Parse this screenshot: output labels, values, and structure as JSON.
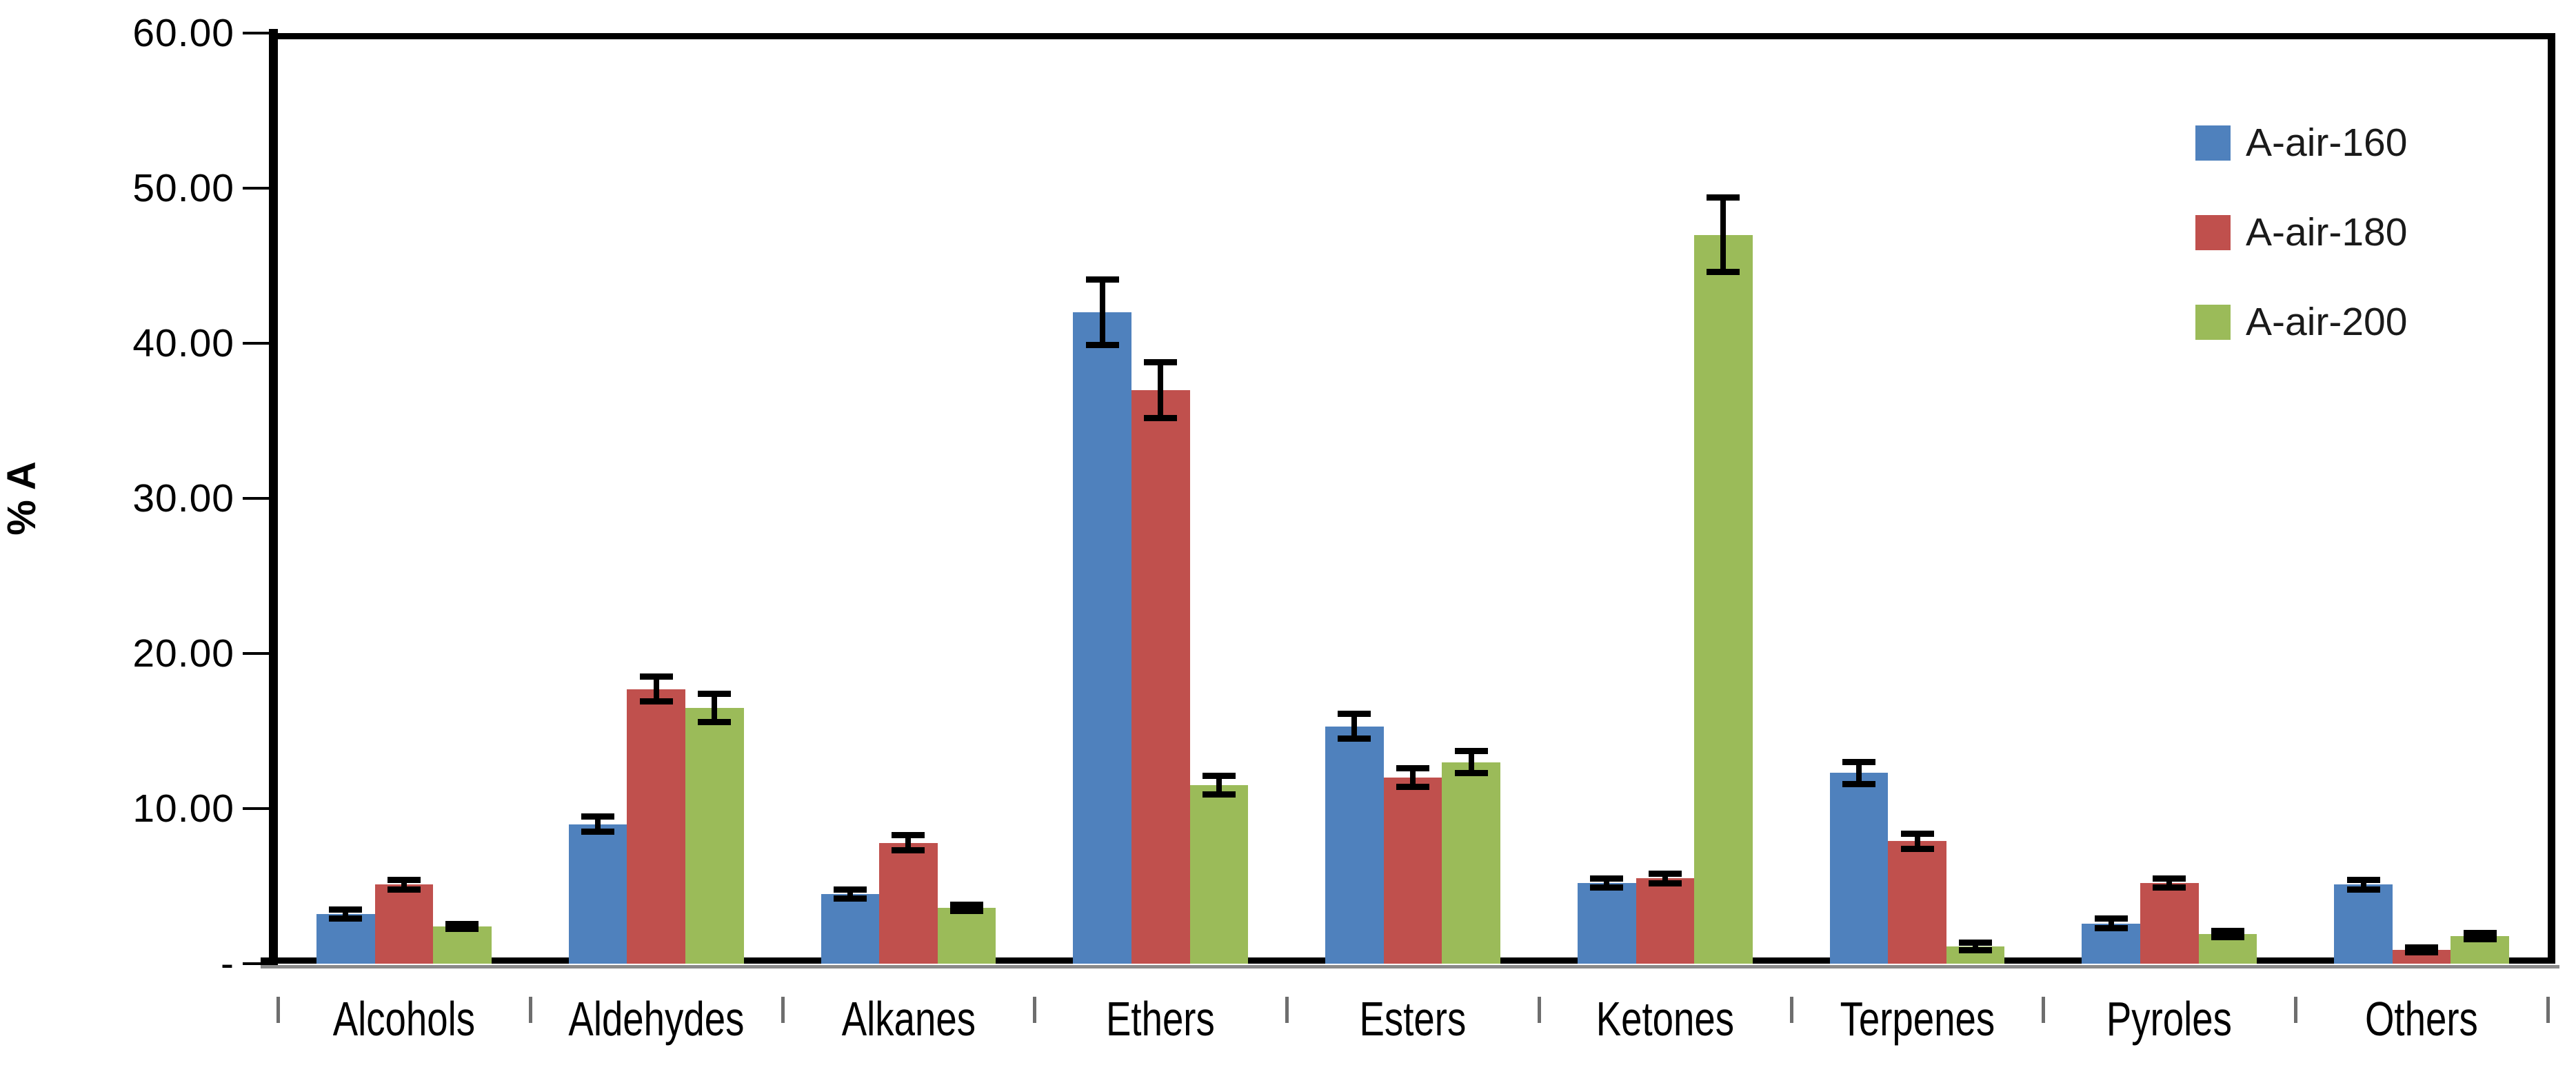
{
  "chart_data": {
    "type": "bar",
    "title": "",
    "ylabel": "% A",
    "xlabel": "",
    "ylim": [
      0,
      60
    ],
    "ytick_step": 10,
    "yticks": [
      {
        "value": 60,
        "label": "60.00"
      },
      {
        "value": 50,
        "label": "50.00"
      },
      {
        "value": 40,
        "label": "40.00"
      },
      {
        "value": 30,
        "label": "30.00"
      },
      {
        "value": 20,
        "label": "20.00"
      },
      {
        "value": 10,
        "label": "10.00"
      },
      {
        "value": 0,
        "label": "-"
      }
    ],
    "grid": false,
    "legend_position": "inside-top-right",
    "error_bars": true,
    "categories": [
      "Alcohols",
      "Aldehydes",
      "Alkanes",
      "Ethers",
      "Esters",
      "Ketones",
      "Terpenes",
      "Pyroles",
      "Others"
    ],
    "series": [
      {
        "name": "A-air-160",
        "color": "#4F81BD",
        "values": [
          3.2,
          9.0,
          4.5,
          42.0,
          15.3,
          5.2,
          12.3,
          2.6,
          5.1
        ],
        "errors": [
          0.3,
          0.5,
          0.3,
          2.1,
          0.8,
          0.3,
          0.7,
          0.3,
          0.3
        ]
      },
      {
        "name": "A-air-180",
        "color": "#C0504D",
        "values": [
          5.1,
          17.7,
          7.8,
          37.0,
          12.0,
          5.5,
          7.9,
          5.2,
          0.9
        ],
        "errors": [
          0.3,
          0.8,
          0.5,
          1.8,
          0.6,
          0.3,
          0.5,
          0.3,
          0.15
        ]
      },
      {
        "name": "A-air-200",
        "color": "#9BBB59",
        "values": [
          2.4,
          16.5,
          3.6,
          11.5,
          13.0,
          47.0,
          1.1,
          1.9,
          1.8
        ],
        "errors": [
          0.15,
          0.9,
          0.2,
          0.6,
          0.7,
          2.4,
          0.25,
          0.2,
          0.2
        ]
      }
    ],
    "colors": {
      "axis": "#000000",
      "axis_shadow": "#8a8a8a",
      "x_tick": "#6e6e6e",
      "error_bar": "#000000",
      "background": "#ffffff"
    }
  }
}
